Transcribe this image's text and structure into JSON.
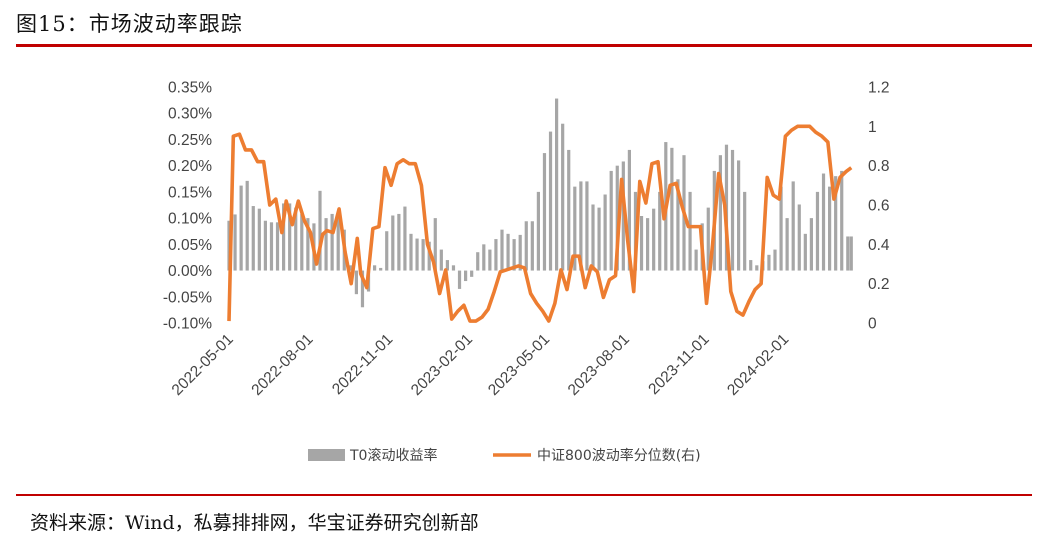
{
  "header": {
    "title": "图15：市场波动率跟踪"
  },
  "footer": {
    "source": "资料来源：Wind，私募排排网，华宝证券研究创新部"
  },
  "colors": {
    "bar": "#a6a6a6",
    "line": "#ed7d31",
    "rule": "#c00000"
  },
  "chart_data": {
    "type": "bar+line",
    "x_ticks": [
      "2022-05-01",
      "2022-08-01",
      "2022-11-01",
      "2023-02-01",
      "2023-05-01",
      "2023-08-01",
      "2023-11-01",
      "2024-02-01"
    ],
    "y_left": {
      "ticks": [
        "0.35%",
        "0.30%",
        "0.25%",
        "0.20%",
        "0.15%",
        "0.10%",
        "0.05%",
        "0.00%",
        "-0.05%",
        "-0.10%"
      ],
      "range": [
        -0.1,
        0.35
      ]
    },
    "y_right": {
      "ticks": [
        "1.2",
        "1",
        "0.8",
        "0.6",
        "0.4",
        "0.2",
        "0"
      ],
      "range": [
        0,
        1.2
      ]
    },
    "x_range": [
      "2022-05-01",
      "2024-04-20"
    ],
    "legend_position": "bottom",
    "series": [
      {
        "name": "T0滚动收益率",
        "kind": "bar",
        "axis": "left",
        "dates": [
          "2022-05-01",
          "2022-05-08",
          "2022-05-15",
          "2022-05-22",
          "2022-05-29",
          "2022-06-05",
          "2022-06-12",
          "2022-06-19",
          "2022-06-26",
          "2022-07-03",
          "2022-07-10",
          "2022-07-17",
          "2022-07-24",
          "2022-07-31",
          "2022-08-07",
          "2022-08-14",
          "2022-08-21",
          "2022-08-28",
          "2022-09-04",
          "2022-09-11",
          "2022-09-18",
          "2022-09-25",
          "2022-10-02",
          "2022-10-09",
          "2022-10-16",
          "2022-10-23",
          "2022-10-30",
          "2022-11-06",
          "2022-11-13",
          "2022-11-20",
          "2022-11-27",
          "2022-12-04",
          "2022-12-11",
          "2022-12-18",
          "2022-12-25",
          "2023-01-01",
          "2023-01-08",
          "2023-01-15",
          "2023-01-22",
          "2023-01-29",
          "2023-02-05",
          "2023-02-12",
          "2023-02-19",
          "2023-02-26",
          "2023-03-05",
          "2023-03-12",
          "2023-03-19",
          "2023-03-26",
          "2023-04-02",
          "2023-04-09",
          "2023-04-16",
          "2023-04-23",
          "2023-04-30",
          "2023-05-07",
          "2023-05-14",
          "2023-05-21",
          "2023-05-28",
          "2023-06-04",
          "2023-06-11",
          "2023-06-18",
          "2023-06-25",
          "2023-07-02",
          "2023-07-09",
          "2023-07-16",
          "2023-07-23",
          "2023-07-30",
          "2023-08-06",
          "2023-08-13",
          "2023-08-20",
          "2023-08-27",
          "2023-09-03",
          "2023-09-10",
          "2023-09-17",
          "2023-09-24",
          "2023-10-01",
          "2023-10-08",
          "2023-10-15",
          "2023-10-22",
          "2023-10-29",
          "2023-11-05",
          "2023-11-12",
          "2023-11-19",
          "2023-11-26",
          "2023-12-03",
          "2023-12-10",
          "2023-12-17",
          "2023-12-24",
          "2023-12-31",
          "2024-01-07",
          "2024-01-14",
          "2024-01-21",
          "2024-01-28",
          "2024-02-04",
          "2024-02-11",
          "2024-02-18",
          "2024-02-25",
          "2024-03-03",
          "2024-03-10",
          "2024-03-17",
          "2024-03-24",
          "2024-03-31",
          "2024-04-07",
          "2024-04-14",
          "2024-04-18"
        ],
        "values": [
          0.095,
          0.107,
          0.162,
          0.171,
          0.123,
          0.118,
          0.095,
          0.092,
          0.092,
          0.128,
          0.128,
          0.12,
          0.108,
          0.1,
          0.09,
          0.152,
          0.1,
          0.108,
          0.1,
          0.078,
          0.01,
          -0.045,
          -0.07,
          -0.04,
          0.01,
          0.005,
          0.075,
          0.105,
          0.108,
          0.122,
          0.07,
          0.061,
          0.06,
          0.055,
          0.1,
          0.04,
          0.02,
          0.01,
          -0.035,
          -0.02,
          -0.012,
          0.035,
          0.05,
          0.04,
          0.06,
          0.078,
          0.07,
          0.06,
          0.068,
          0.094,
          0.094,
          0.15,
          0.224,
          0.265,
          0.328,
          0.28,
          0.23,
          0.16,
          0.17,
          0.17,
          0.126,
          0.12,
          0.145,
          0.19,
          0.2,
          0.208,
          0.23,
          0.15,
          0.104,
          0.1,
          0.118,
          0.15,
          0.245,
          0.234,
          0.174,
          0.22,
          0.15,
          0.04,
          0.09,
          0.12,
          0.19,
          0.22,
          0.24,
          0.23,
          0.21,
          0.15,
          0.02,
          0.01,
          0.018,
          0.03,
          0.04,
          0.16,
          0.1,
          0.17,
          0.126,
          0.07,
          0.1,
          0.15,
          0.185,
          0.16,
          0.18,
          0.19,
          0.065,
          0.065
        ]
      },
      {
        "name": "中证800波动率分位数(右)",
        "kind": "line",
        "axis": "right",
        "dates": [
          "2022-05-01",
          "2022-05-06",
          "2022-05-13",
          "2022-05-20",
          "2022-05-27",
          "2022-06-03",
          "2022-06-10",
          "2022-06-17",
          "2022-06-24",
          "2022-07-01",
          "2022-07-06",
          "2022-07-13",
          "2022-07-20",
          "2022-07-27",
          "2022-08-03",
          "2022-08-10",
          "2022-08-17",
          "2022-08-22",
          "2022-08-29",
          "2022-09-05",
          "2022-09-12",
          "2022-09-19",
          "2022-09-26",
          "2022-09-30",
          "2022-10-07",
          "2022-10-14",
          "2022-10-21",
          "2022-10-28",
          "2022-11-04",
          "2022-11-11",
          "2022-11-18",
          "2022-11-25",
          "2022-12-02",
          "2022-12-09",
          "2022-12-16",
          "2022-12-23",
          "2022-12-30",
          "2023-01-06",
          "2023-01-13",
          "2023-01-20",
          "2023-01-27",
          "2023-02-03",
          "2023-02-10",
          "2023-02-17",
          "2023-02-24",
          "2023-03-03",
          "2023-03-10",
          "2023-03-17",
          "2023-03-24",
          "2023-03-31",
          "2023-04-07",
          "2023-04-14",
          "2023-04-21",
          "2023-04-28",
          "2023-05-05",
          "2023-05-12",
          "2023-05-19",
          "2023-05-26",
          "2023-06-02",
          "2023-06-09",
          "2023-06-16",
          "2023-06-23",
          "2023-06-30",
          "2023-07-07",
          "2023-07-14",
          "2023-07-21",
          "2023-07-28",
          "2023-08-04",
          "2023-08-11",
          "2023-08-18",
          "2023-08-25",
          "2023-09-01",
          "2023-09-08",
          "2023-09-15",
          "2023-09-22",
          "2023-09-29",
          "2023-10-06",
          "2023-10-13",
          "2023-10-20",
          "2023-10-27",
          "2023-11-03",
          "2023-11-10",
          "2023-11-17",
          "2023-11-24",
          "2023-12-01",
          "2023-12-08",
          "2023-12-15",
          "2023-12-22",
          "2023-12-29",
          "2024-01-05",
          "2024-01-12",
          "2024-01-19",
          "2024-01-26",
          "2024-02-02",
          "2024-02-09",
          "2024-02-16",
          "2024-02-23",
          "2024-03-01",
          "2024-03-08",
          "2024-03-15",
          "2024-03-22",
          "2024-03-29",
          "2024-04-05",
          "2024-04-12",
          "2024-04-18"
        ],
        "values": [
          0.01,
          0.95,
          0.96,
          0.88,
          0.88,
          0.82,
          0.82,
          0.6,
          0.63,
          0.46,
          0.62,
          0.5,
          0.62,
          0.52,
          0.46,
          0.3,
          0.45,
          0.47,
          0.46,
          0.58,
          0.36,
          0.2,
          0.43,
          0.25,
          0.18,
          0.48,
          0.49,
          0.79,
          0.7,
          0.81,
          0.83,
          0.81,
          0.81,
          0.7,
          0.4,
          0.31,
          0.15,
          0.27,
          0.02,
          0.06,
          0.09,
          0.01,
          0.01,
          0.03,
          0.07,
          0.16,
          0.26,
          0.27,
          0.28,
          0.29,
          0.28,
          0.15,
          0.1,
          0.06,
          0.01,
          0.1,
          0.27,
          0.17,
          0.34,
          0.34,
          0.18,
          0.29,
          0.26,
          0.13,
          0.22,
          0.24,
          0.73,
          0.42,
          0.16,
          0.72,
          0.61,
          0.81,
          0.82,
          0.53,
          0.7,
          0.71,
          0.59,
          0.49,
          0.49,
          0.49,
          0.1,
          0.4,
          0.76,
          0.6,
          0.16,
          0.06,
          0.04,
          0.11,
          0.17,
          0.2,
          0.74,
          0.65,
          0.63,
          0.95,
          0.98,
          1.0,
          1.0,
          1.0,
          0.97,
          0.95,
          0.92,
          0.63,
          0.74,
          0.77,
          0.79
        ]
      }
    ]
  }
}
